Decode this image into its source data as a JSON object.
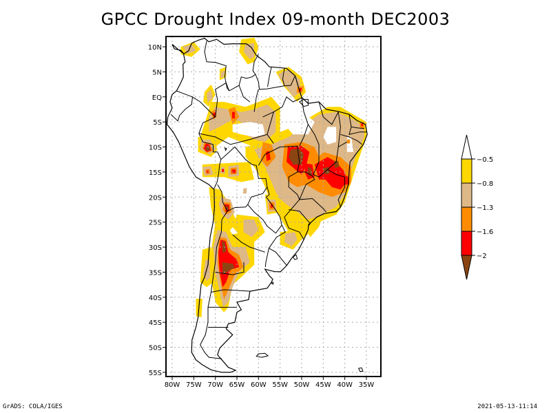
{
  "title": "GPCC Drought Index 09-month DEC2003",
  "footer": {
    "left": "GrADS: COLA/IGES",
    "right": "2021-05-13-11:14"
  },
  "map": {
    "region": "South America",
    "lon_range": [
      -81.5,
      -31.5
    ],
    "lat_range": [
      12,
      -56
    ],
    "lat_ticks": [
      "10N",
      "5N",
      "EQ",
      "5S",
      "10S",
      "15S",
      "20S",
      "25S",
      "30S",
      "35S",
      "40S",
      "45S",
      "50S",
      "55S"
    ],
    "lat_tick_values": [
      10,
      5,
      0,
      -5,
      -10,
      -15,
      -20,
      -25,
      -30,
      -35,
      -40,
      -45,
      -50,
      -55
    ],
    "lon_ticks": [
      "80W",
      "75W",
      "70W",
      "65W",
      "60W",
      "55W",
      "50W",
      "45W",
      "40W",
      "35W"
    ],
    "lon_tick_values": [
      -80,
      -75,
      -70,
      -65,
      -60,
      -55,
      -50,
      -45,
      -40,
      -35
    ]
  },
  "colorbar": {
    "labels": [
      "-0.5",
      "-0.8",
      "-1.3",
      "-1.6",
      "-2"
    ],
    "bins": [
      {
        "name": "above -0.5",
        "color": "#ffffff"
      },
      {
        "name": "-0.8 to -0.5",
        "color": "#ffd700"
      },
      {
        "name": "-1.3 to -0.8",
        "color": "#deb887"
      },
      {
        "name": "-1.6 to -1.3",
        "color": "#ff8c00"
      },
      {
        "name": "-2 to -1.6",
        "color": "#ff0000"
      },
      {
        "name": "below -2",
        "color": "#8b4513"
      }
    ]
  }
}
